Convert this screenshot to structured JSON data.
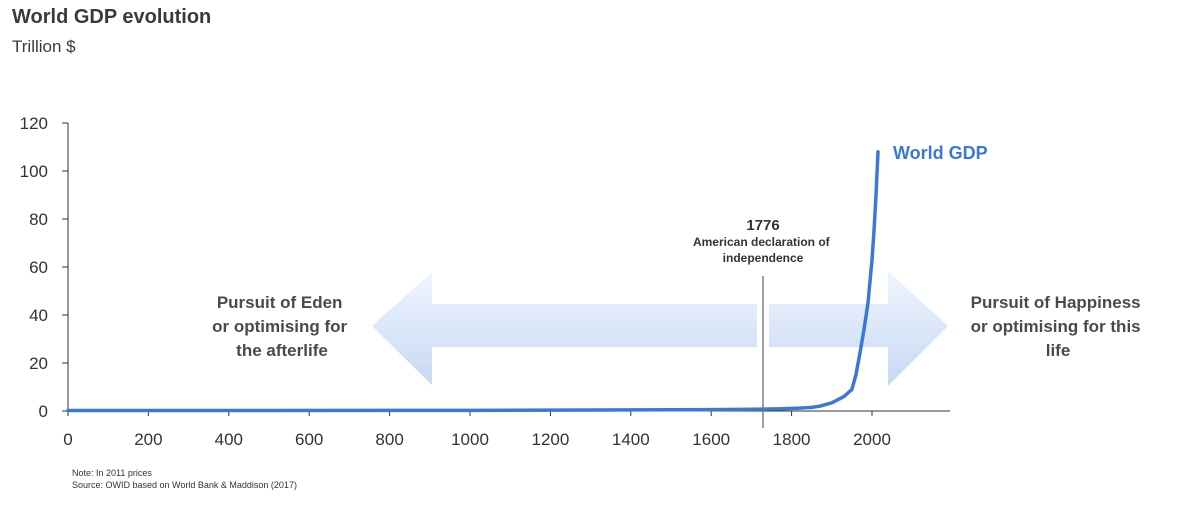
{
  "header": {
    "title": "World GDP evolution",
    "subtitle": "Trillion $"
  },
  "footnotes": {
    "note": "Note: In 2011 prices",
    "source": "Source: OWID based on World Bank & Maddison (2017)"
  },
  "colors": {
    "series": "#3a78d8",
    "arrow_light": "#f0f5fd",
    "arrow_dark": "#c7d8f4",
    "axis": "#333333",
    "event_line": "#808080"
  },
  "annotations": {
    "left_era": [
      "Pursuit of Eden",
      "or optimising for",
      "the afterlife"
    ],
    "right_era": [
      "Pursuit of Happiness",
      "or optimising for this",
      "life"
    ],
    "event": {
      "year": 1776,
      "label": "1776",
      "desc": [
        "American declaration of",
        "independence"
      ]
    }
  },
  "chart_data": {
    "type": "line",
    "title": "World GDP evolution",
    "subtitle": "Trillion $",
    "xlabel": "",
    "ylabel": "Trillion $",
    "xlim": [
      0,
      2200
    ],
    "ylim": [
      0,
      120
    ],
    "x_ticks": [
      0,
      200,
      400,
      600,
      800,
      1000,
      1200,
      1400,
      1600,
      1800,
      2000
    ],
    "y_ticks": [
      0,
      20,
      40,
      60,
      80,
      100,
      120
    ],
    "grid": false,
    "legend": "direct label at line end",
    "series": [
      {
        "name": "World GDP",
        "x": [
          0,
          1000,
          1500,
          1600,
          1700,
          1776,
          1820,
          1850,
          1870,
          1900,
          1913,
          1930,
          1940,
          1950,
          1960,
          1970,
          1980,
          1990,
          2000,
          2005,
          2010,
          2015
        ],
        "y": [
          0.2,
          0.25,
          0.5,
          0.6,
          0.7,
          0.9,
          1.2,
          1.5,
          2.0,
          3.4,
          4.5,
          6.0,
          7.5,
          9.0,
          15.0,
          24.0,
          34.0,
          45.0,
          63.0,
          75.0,
          90.0,
          108.0
        ]
      }
    ]
  }
}
